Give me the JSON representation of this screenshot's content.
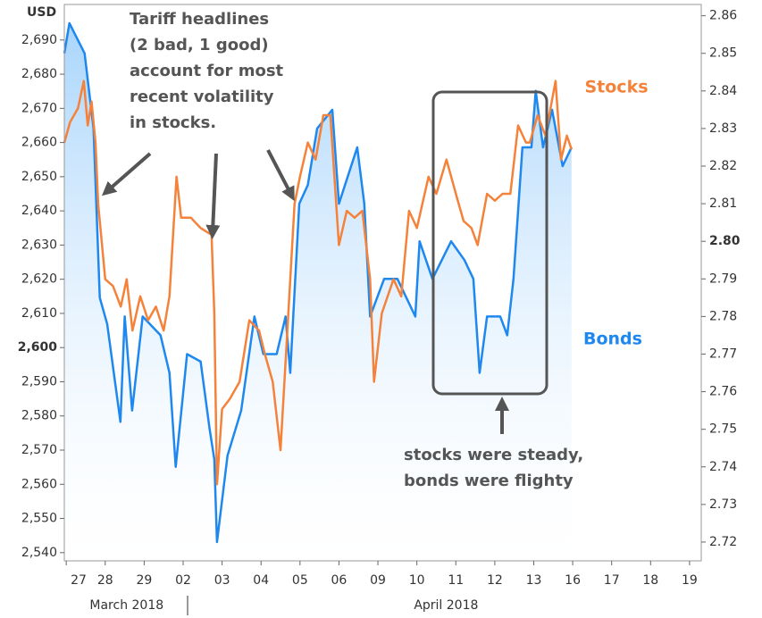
{
  "chart_data": {
    "type": "line",
    "y_label": "USD",
    "xlim": [
      -0.05,
      16.3
    ],
    "xticks": [
      {
        "value": 0,
        "label": "27"
      },
      {
        "value": 1,
        "label": "28"
      },
      {
        "value": 2,
        "label": "29"
      },
      {
        "value": 3,
        "label": "02"
      },
      {
        "value": 4,
        "label": "03"
      },
      {
        "value": 5,
        "label": "04"
      },
      {
        "value": 6,
        "label": "05"
      },
      {
        "value": 7,
        "label": "06"
      },
      {
        "value": 8,
        "label": "09"
      },
      {
        "value": 9,
        "label": "10"
      },
      {
        "value": 10,
        "label": "11"
      },
      {
        "value": 11,
        "label": "12"
      },
      {
        "value": 12,
        "label": "13"
      },
      {
        "value": 13,
        "label": "16"
      },
      {
        "value": 14,
        "label": "17"
      },
      {
        "value": 15,
        "label": "18"
      },
      {
        "value": 16,
        "label": "19"
      }
    ],
    "month_labels": [
      {
        "value": 1.55,
        "label": "March 2018"
      },
      {
        "value": 9.75,
        "label": "April 2018"
      }
    ],
    "ylim": [
      2537.6,
      2700.4
    ],
    "yticks": [
      {
        "value": 2540,
        "label": "2,540"
      },
      {
        "value": 2550,
        "label": "2,550"
      },
      {
        "value": 2560,
        "label": "2,560"
      },
      {
        "value": 2570,
        "label": "2,570"
      },
      {
        "value": 2580,
        "label": "2,580"
      },
      {
        "value": 2590,
        "label": "2,590"
      },
      {
        "value": 2600,
        "label": "2,600",
        "bold": true
      },
      {
        "value": 2610,
        "label": "2,610"
      },
      {
        "value": 2620,
        "label": "2,620"
      },
      {
        "value": 2630,
        "label": "2,630"
      },
      {
        "value": 2640,
        "label": "2,640"
      },
      {
        "value": 2650,
        "label": "2,650"
      },
      {
        "value": 2660,
        "label": "2,660"
      },
      {
        "value": 2670,
        "label": "2,670"
      },
      {
        "value": 2680,
        "label": "2,680"
      },
      {
        "value": 2690,
        "label": "2,690"
      }
    ],
    "y2lim": [
      2.715,
      2.863
    ],
    "y2ticks": [
      2.72,
      2.73,
      2.74,
      2.75,
      2.76,
      2.77,
      2.78,
      2.79,
      {
        "value": 2.8,
        "label": "2.80",
        "bold": true
      },
      2.81,
      2.82,
      2.83,
      2.84,
      2.85,
      2.86
    ],
    "grid": false,
    "series": [
      {
        "name": "Stocks",
        "color": "#f4823a",
        "axis": "y",
        "x": [
          -0.05,
          0.1,
          0.3,
          0.45,
          0.55,
          0.65,
          0.75,
          0.82,
          1.0,
          1.2,
          1.4,
          1.55,
          1.7,
          1.9,
          2.1,
          2.3,
          2.5,
          2.65,
          2.83,
          2.95,
          3.2,
          3.45,
          3.73,
          3.8,
          3.87,
          4.0,
          4.2,
          4.45,
          4.7,
          4.95,
          5.1,
          5.3,
          5.5,
          5.65,
          5.86,
          6.0,
          6.2,
          6.4,
          6.6,
          6.78,
          7.0,
          7.2,
          7.4,
          7.6,
          7.8,
          7.9,
          8.1,
          8.4,
          8.6,
          8.8,
          9.0,
          9.3,
          9.5,
          9.76,
          10.0,
          10.2,
          10.4,
          10.56,
          10.8,
          11.0,
          11.2,
          11.4,
          11.6,
          11.8,
          11.9,
          12.1,
          12.3,
          12.56,
          12.7,
          12.85,
          12.97
        ],
        "values": [
          2660,
          2666,
          2670,
          2678,
          2665,
          2672,
          2660,
          2642,
          2620,
          2618,
          2612,
          2620,
          2605,
          2615,
          2608,
          2612,
          2605,
          2615,
          2650,
          2638,
          2638,
          2635,
          2633,
          2610,
          2560,
          2582,
          2585,
          2590,
          2608,
          2605,
          2598,
          2590,
          2570,
          2600,
          2642,
          2650,
          2660,
          2655,
          2668,
          2668,
          2630,
          2640,
          2638,
          2640,
          2620,
          2590,
          2610,
          2620,
          2615,
          2640,
          2635,
          2650,
          2645,
          2655,
          2645,
          2637,
          2635,
          2630,
          2645,
          2643,
          2645,
          2645,
          2665,
          2660,
          2660,
          2668,
          2662,
          2678,
          2655,
          2662,
          2658
        ]
      },
      {
        "name": "Bonds",
        "color": "#1e88ef",
        "axis": "y2",
        "area": true,
        "x": [
          -0.05,
          0.08,
          0.47,
          0.7,
          0.86,
          1.05,
          1.39,
          1.5,
          1.69,
          1.96,
          2.42,
          2.65,
          2.81,
          3.1,
          3.45,
          3.68,
          3.8,
          3.87,
          4.14,
          4.49,
          4.83,
          5.06,
          5.4,
          5.63,
          5.75,
          5.98,
          6.2,
          6.44,
          6.83,
          7.0,
          7.47,
          7.65,
          7.8,
          8.16,
          8.5,
          8.96,
          9.07,
          9.4,
          9.88,
          10.22,
          10.45,
          10.61,
          10.8,
          11.14,
          11.32,
          11.48,
          11.71,
          11.94,
          12.05,
          12.24,
          12.47,
          12.74,
          12.97
        ],
        "values": [
          2.85,
          2.858,
          2.85,
          2.83,
          2.785,
          2.778,
          2.752,
          2.78,
          2.755,
          2.78,
          2.775,
          2.765,
          2.74,
          2.77,
          2.768,
          2.75,
          2.742,
          2.72,
          2.743,
          2.755,
          2.78,
          2.77,
          2.77,
          2.78,
          2.765,
          2.81,
          2.815,
          2.83,
          2.835,
          2.81,
          2.825,
          2.81,
          2.78,
          2.79,
          2.79,
          2.78,
          2.8,
          2.79,
          2.8,
          2.795,
          2.79,
          2.765,
          2.78,
          2.78,
          2.775,
          2.79,
          2.825,
          2.825,
          2.84,
          2.825,
          2.835,
          2.82,
          2.825
        ]
      }
    ],
    "annotations": [
      {
        "lines": [
          "Tariff headlines",
          "(2 bad, 1 good)",
          "account for most",
          "recent volatility",
          "in stocks."
        ]
      },
      {
        "lines": [
          "stocks were steady,",
          "bonds were flighty"
        ]
      }
    ]
  }
}
